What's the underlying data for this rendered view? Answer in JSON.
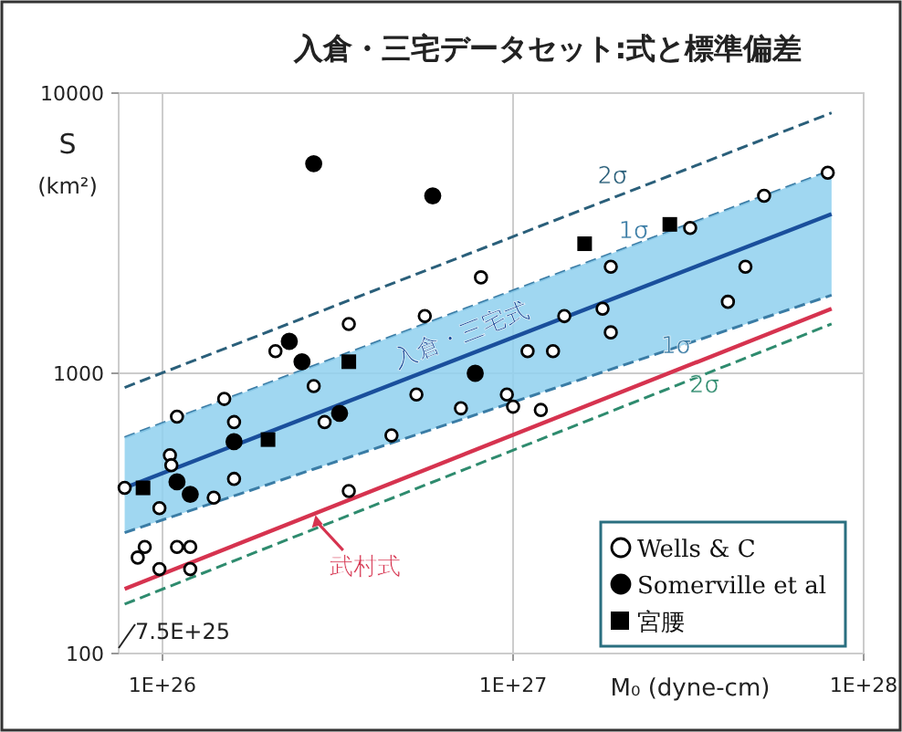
{
  "chart_data": {
    "type": "scatter",
    "title": "入倉・三宅データセット:式と標準偏差",
    "xlabel": "M₀ (dyne-cm)",
    "ylabel": "S\n(km²)",
    "log": "xy",
    "grid": true,
    "legend": "bottom right",
    "xlim": [
      7.5e+25,
      1e+28
    ],
    "xticks": [
      {
        "value": 1e+26,
        "label": "1E+26"
      },
      {
        "value": 1e+27,
        "label": "1E+27"
      },
      {
        "value": 1e+28,
        "label": "1E+28"
      }
    ],
    "ylim": [
      100,
      10000
    ],
    "yticks": [
      100,
      1000,
      10000
    ],
    "annotations": [
      "7.5E+25"
    ],
    "series": [
      {
        "type": "line",
        "name": "2σ",
        "color": "#2a5f7a",
        "line_style": "dashed",
        "x": [
          7.8e+25,
          8.1e+27
        ],
        "values": [
          890,
          8500
        ]
      },
      {
        "type": "line",
        "name": "1σ",
        "color": "#3a7ca5",
        "line_style": "dashed",
        "x": [
          7.8e+25,
          8.1e+27
        ],
        "values": [
          590,
          5300
        ]
      },
      {
        "type": "line",
        "name": "入倉・三宅式",
        "color": "#1a4f9c",
        "line_style": "solid",
        "x": [
          7.8e+25,
          8.1e+27
        ],
        "values": [
          390,
          3700
        ],
        "lower": [
          270,
          1900
        ],
        "upper": [
          590,
          5300
        ]
      },
      {
        "type": "line",
        "name": "1σ",
        "color": "#3a7ca5",
        "line_style": "dashed",
        "x": [
          7.8e+25,
          8.1e+27
        ],
        "values": [
          270,
          1900
        ]
      },
      {
        "type": "line",
        "name": "2σ",
        "color": "#2e8b6e",
        "line_style": "dashed",
        "x": [
          7.8e+25,
          8.1e+27
        ],
        "values": [
          150,
          1500
        ]
      },
      {
        "type": "line",
        "name": "武村式",
        "color": "#d6334f",
        "line_style": "solid",
        "x": [
          7.8e+25,
          8.1e+27
        ],
        "values": [
          170,
          1700
        ]
      },
      {
        "name": "Wells & C",
        "color": "#ffffff",
        "marker": "circle",
        "x": [
          7.9e+27,
          5.2e+27,
          3.2e+27,
          1.9e+27,
          4.6e+27,
          8.1e+26,
          5.6e+26,
          1.4e+27,
          1.8e+27,
          4.1e+27,
          3.4e+26,
          1.9e+27,
          1.1e+27,
          1.3e+27,
          2.1e+26,
          2.7e+26,
          5.3e+26,
          9.6e+26,
          1e+27,
          1.2e+27,
          7.1e+26,
          1.1e+26,
          1.5e+26,
          1.6e+26,
          2.9e+26,
          4.5e+26,
          1.05e+26,
          1.06e+26,
          7.8e+25,
          1.4e+26,
          1.6e+26,
          9.8e+25,
          3.4e+26,
          8.9e+25,
          1.1e+26,
          1.2e+26,
          8.5e+25,
          9.8e+25,
          1.2e+26
        ],
        "values": [
          5200,
          4300,
          3300,
          2400,
          2400,
          2200,
          1600,
          1600,
          1700,
          1800,
          1500,
          1400,
          1200,
          1200,
          1200,
          900,
          840,
          840,
          760,
          740,
          750,
          700,
          810,
          670,
          670,
          600,
          510,
          470,
          390,
          360,
          420,
          330,
          380,
          240,
          240,
          240,
          220,
          200,
          200
        ]
      },
      {
        "name": "Somerville et al",
        "color": "#000000",
        "marker": "circle",
        "x": [
          2.7e+26,
          5.9e+26,
          2.3e+26,
          2.5e+26,
          7.8e+26,
          3.2e+26,
          1.6e+26,
          1.1e+26,
          1.2e+26
        ],
        "values": [
          5600,
          4300,
          1300,
          1100,
          1000,
          720,
          570,
          410,
          370
        ]
      },
      {
        "name": "宮腰",
        "color": "#000000",
        "marker": "square",
        "x": [
          1.6e+27,
          2.8e+27,
          3.4e+26,
          2e+26,
          8.8e+25
        ],
        "values": [
          2900,
          3400,
          1100,
          580,
          390
        ]
      }
    ]
  }
}
